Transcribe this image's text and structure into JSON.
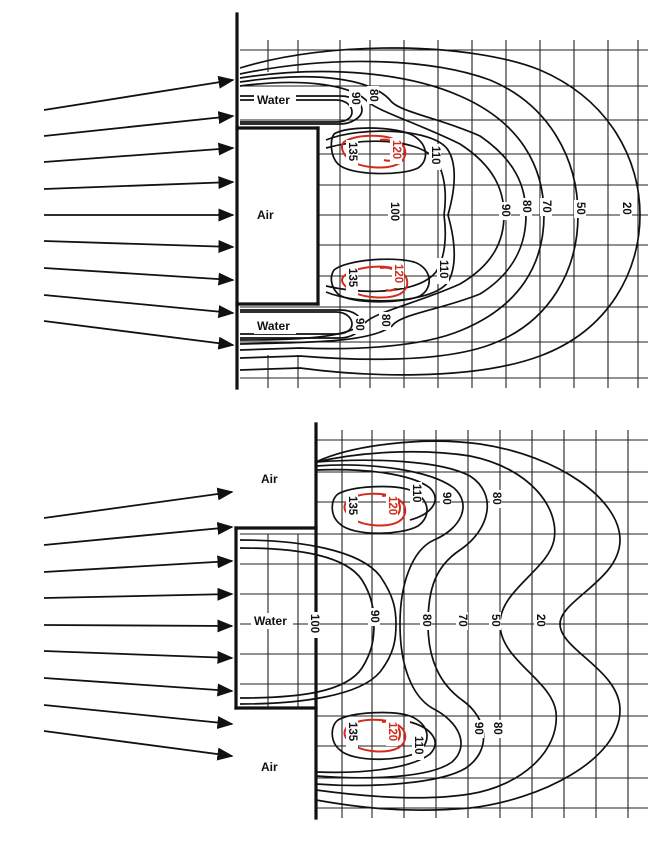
{
  "palette": {
    "contour": "#111111",
    "peak_contour": "#d42a1c",
    "grid": "#222222",
    "background": "#ffffff"
  },
  "top_panel": {
    "media": {
      "water_top": "Water",
      "air": "Air",
      "water_bottom": "Water"
    },
    "contour_labels": {
      "c135_upper": "135",
      "c120_upper": "120",
      "c110_upper": "110",
      "c90_tip_upper": "90",
      "c80_tip_upper": "80",
      "c100_center": "100",
      "c90": "90",
      "c80": "80",
      "c70": "70",
      "c50": "50",
      "c20": "20",
      "c135_lower": "135",
      "c120_lower": "120",
      "c110_lower": "110",
      "c90_tip_lower": "90",
      "c80_tip_lower": "80"
    }
  },
  "bottom_panel": {
    "media": {
      "air_top": "Air",
      "water": "Water",
      "air_bottom": "Air"
    },
    "contour_labels": {
      "c135_upper": "135",
      "c120_upper": "120",
      "c110_upper": "110",
      "c90_upper": "90",
      "c80_upper": "80",
      "c100_center": "100",
      "c90": "90",
      "c80": "80",
      "c70": "70",
      "c50": "50",
      "c20": "20",
      "c135_lower": "135",
      "c120_lower": "120",
      "c110_lower": "110",
      "c90_lower": "90",
      "c80_lower": "80"
    }
  }
}
